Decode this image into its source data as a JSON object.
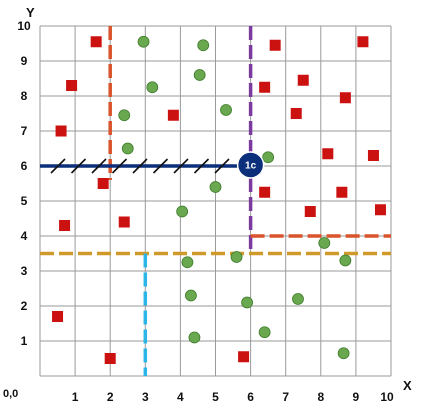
{
  "chart_data": {
    "type": "scatter",
    "xlabel": "X",
    "ylabel": "Y",
    "origin_label": "0,0",
    "xlim": [
      0,
      10
    ],
    "ylim": [
      0,
      10
    ],
    "x_ticks": [
      "1",
      "2",
      "3",
      "4",
      "5",
      "6",
      "7",
      "8",
      "9",
      "10"
    ],
    "y_ticks": [
      "1",
      "2",
      "3",
      "4",
      "5",
      "6",
      "7",
      "8",
      "9",
      "10"
    ],
    "grid": true,
    "colors": {
      "square": "#cc1111",
      "circle": "#6aa84f",
      "circle_stroke": "#3d7a2a",
      "grid": "#9a9a9a",
      "badge": "#0b2f7a"
    },
    "squares": [
      [
        1.6,
        9.55
      ],
      [
        0.9,
        8.3
      ],
      [
        0.6,
        7.0
      ],
      [
        1.8,
        5.5
      ],
      [
        0.7,
        4.3
      ],
      [
        2.4,
        4.4
      ],
      [
        0.5,
        1.7
      ],
      [
        2.0,
        0.5
      ],
      [
        3.8,
        7.45
      ],
      [
        5.8,
        0.55
      ],
      [
        6.7,
        9.45
      ],
      [
        6.4,
        8.25
      ],
      [
        7.5,
        8.45
      ],
      [
        7.3,
        7.5
      ],
      [
        8.7,
        7.95
      ],
      [
        9.2,
        9.55
      ],
      [
        8.2,
        6.35
      ],
      [
        9.5,
        6.3
      ],
      [
        6.4,
        5.25
      ],
      [
        8.6,
        5.25
      ],
      [
        7.7,
        4.7
      ],
      [
        9.7,
        4.75
      ]
    ],
    "circles": [
      [
        2.95,
        9.55
      ],
      [
        4.65,
        9.45
      ],
      [
        3.2,
        8.25
      ],
      [
        4.55,
        8.6
      ],
      [
        2.4,
        7.45
      ],
      [
        5.3,
        7.6
      ],
      [
        2.5,
        6.5
      ],
      [
        6.5,
        6.25
      ],
      [
        5.0,
        5.4
      ],
      [
        4.05,
        4.7
      ],
      [
        5.6,
        3.4
      ],
      [
        4.2,
        3.25
      ],
      [
        8.1,
        3.8
      ],
      [
        8.7,
        3.3
      ],
      [
        4.3,
        2.3
      ],
      [
        5.9,
        2.1
      ],
      [
        7.35,
        2.2
      ],
      [
        6.4,
        1.25
      ],
      [
        4.4,
        1.1
      ],
      [
        8.65,
        0.65
      ]
    ],
    "guide_lines": [
      {
        "color": "#d9542a",
        "orientation": "vertical",
        "at": 2.0,
        "from": 10.0,
        "to": 5.6
      },
      {
        "color": "#7a3a9e",
        "orientation": "vertical",
        "at": 6.0,
        "from": 10.0,
        "to": 3.55
      },
      {
        "color": "#d9542a",
        "orientation": "horizontal",
        "at": 4.0,
        "from": 6.0,
        "to": 10.0
      },
      {
        "color": "#d09a2a",
        "orientation": "horizontal",
        "at": 3.5,
        "from": 0.0,
        "to": 10.0
      },
      {
        "color": "#2cb5e8",
        "orientation": "vertical",
        "at": 3.0,
        "from": 3.5,
        "to": 0.0
      },
      {
        "color": "#0b2f7a",
        "orientation": "horizontal",
        "at": 6.0,
        "from": 0.0,
        "to": 6.0
      }
    ],
    "badge": {
      "x": 6.0,
      "y": 6.0,
      "label": "1c"
    }
  }
}
